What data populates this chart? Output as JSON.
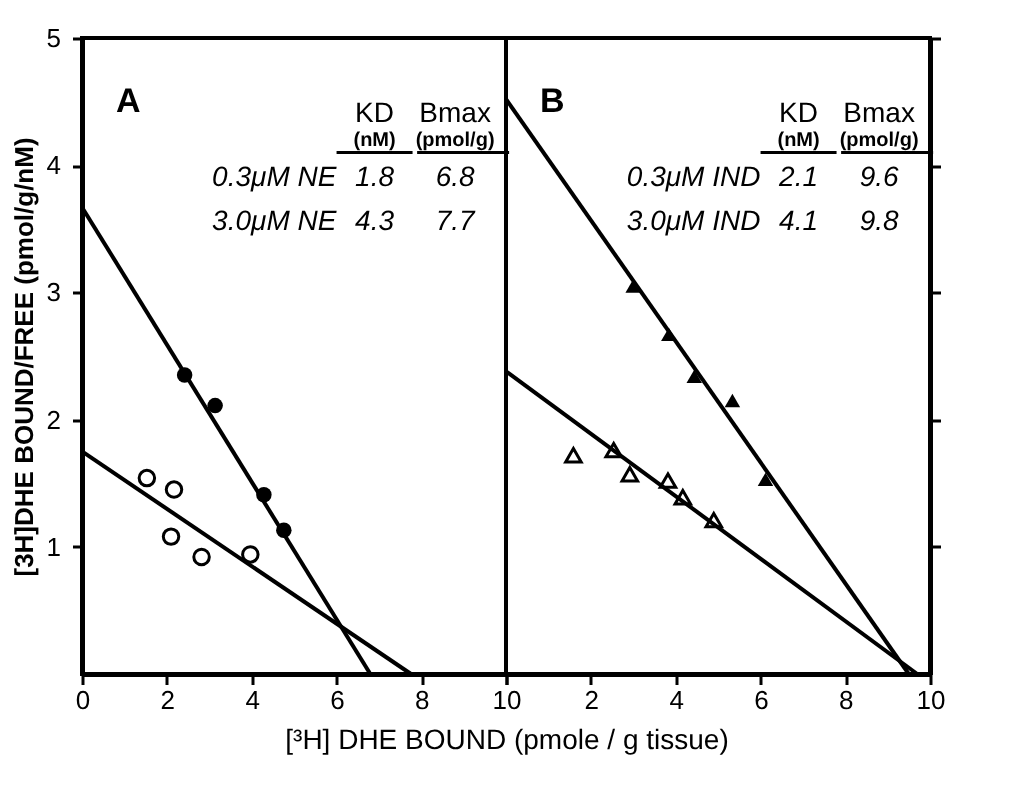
{
  "chart_data": [
    {
      "type": "scatter",
      "ylabel": "[3H]DHE BOUND/FREE (pmol/g/nM)",
      "xlabel": "[³H] DHE BOUND (pmole / g tissue)",
      "xlim": [
        0,
        10
      ],
      "xticks": [
        0,
        2,
        4,
        6,
        8,
        10
      ],
      "ylim": [
        0,
        5
      ],
      "yticks": [
        1,
        2,
        3,
        4,
        5
      ],
      "grid": false,
      "annotations": [
        "A",
        "KD",
        "(nM)",
        "Bmax",
        "(pmol/g)",
        "0.3μM NE",
        "1.8",
        "6.8",
        "3.0μM NE",
        "4.3",
        "7.7"
      ],
      "series": [
        {
          "marker": "circle",
          "color": "#000000",
          "x": [
            2.42,
            3.14,
            4.29,
            4.76
          ],
          "values": [
            2.35,
            2.11,
            1.41,
            1.13
          ]
        },
        {
          "marker": "circle",
          "color": "#000000",
          "x": [
            1.53,
            2.17,
            2.1,
            2.82,
            3.97
          ],
          "values": [
            1.54,
            1.45,
            1.08,
            0.92,
            0.94
          ]
        },
        {
          "type": "line",
          "line_style": "solid",
          "color": "#000000",
          "x": [
            0,
            6.8
          ],
          "values": [
            3.67,
            0
          ]
        },
        {
          "type": "line",
          "line_style": "solid",
          "color": "#000000",
          "x": [
            0,
            7.76
          ],
          "values": [
            1.75,
            0
          ]
        }
      ]
    },
    {
      "type": "scatter",
      "tick_labels": "x",
      "xlim": [
        0,
        10
      ],
      "xticks": [
        {
          "value": 0,
          "label": null
        },
        2,
        4,
        6,
        8,
        10
      ],
      "ylim": [
        0,
        5
      ],
      "yticks": [
        {
          "value": 1,
          "label": null
        },
        {
          "value": 2,
          "label": null
        },
        {
          "value": 3,
          "label": null
        },
        {
          "value": 4,
          "label": null
        },
        {
          "value": 5,
          "label": null
        }
      ],
      "grid": false,
      "annotations": [
        "B",
        "KD",
        "(nM)",
        "Bmax",
        "(pmol/g)",
        "0.3μM IND",
        "2.1",
        "9.6",
        "3.0μM IND",
        "4.1",
        "9.8"
      ],
      "series": [
        {
          "marker": "triangle",
          "color": "#000000",
          "x": [
            3.0,
            3.84,
            4.44,
            5.34,
            6.12
          ],
          "values": [
            3.05,
            2.67,
            2.34,
            2.15,
            1.53
          ]
        },
        {
          "marker": "triangle",
          "color": "#000000",
          "x": [
            1.59,
            2.54,
            2.92,
            3.82,
            4.17,
            4.9
          ],
          "values": [
            1.72,
            1.76,
            1.57,
            1.52,
            1.39,
            1.21
          ]
        },
        {
          "type": "line",
          "line_style": "solid",
          "color": "#000000",
          "x": [
            0,
            9.5
          ],
          "values": [
            4.52,
            0
          ]
        },
        {
          "type": "line",
          "line_style": "solid",
          "color": "#000000",
          "x": [
            0,
            9.7
          ],
          "values": [
            2.38,
            0
          ]
        }
      ]
    }
  ]
}
